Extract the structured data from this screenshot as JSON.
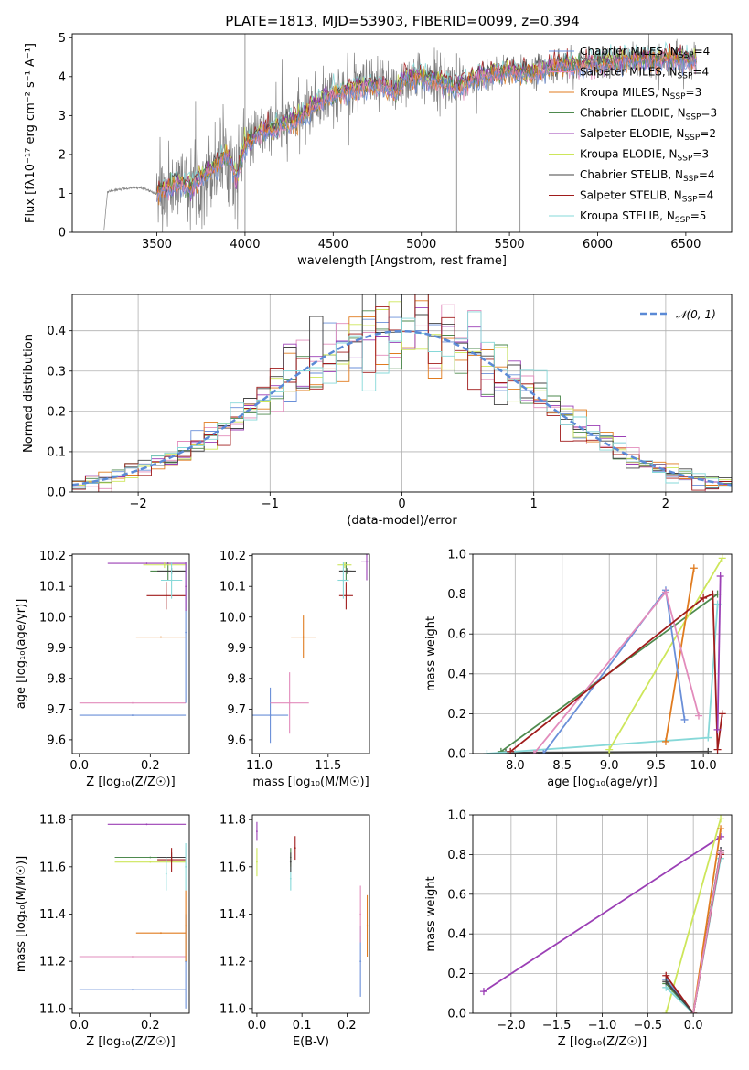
{
  "figure": {
    "title": "PLATE=1813, MJD=53903, FIBERID=0099, z=0.394"
  },
  "models": [
    {
      "name": "Chabrier MILES",
      "nssp": "4",
      "color": "#6a8fd8"
    },
    {
      "name": "Salpeter MILES",
      "nssp": "4",
      "color": "#e28cbc"
    },
    {
      "name": "Kroupa MILES",
      "nssp": "3",
      "color": "#e07b1f"
    },
    {
      "name": "Chabrier ELODIE",
      "nssp": "3",
      "color": "#4e8a4e"
    },
    {
      "name": "Salpeter ELODIE",
      "nssp": "2",
      "color": "#9b3fb5"
    },
    {
      "name": "Kroupa ELODIE",
      "nssp": "3",
      "color": "#cde65a"
    },
    {
      "name": "Chabrier STELIB",
      "nssp": "4",
      "color": "#444444"
    },
    {
      "name": "Salpeter STELIB",
      "nssp": "4",
      "color": "#a01c1c"
    },
    {
      "name": "Kroupa STELIB",
      "nssp": "5",
      "color": "#86d8d8"
    }
  ],
  "chart_data": [
    {
      "id": "spectrum",
      "type": "line",
      "xlabel": "wavelength [Angstrom, rest frame]",
      "ylabel": "Flux [fλ10⁻¹⁷ erg cm⁻² s⁻¹ A⁻¹]",
      "xlim": [
        3020,
        6760
      ],
      "ylim": [
        0,
        5.1
      ],
      "xticks": [
        3500,
        4000,
        4500,
        5000,
        5500,
        6000,
        6500
      ],
      "yticks": [
        0,
        1,
        2,
        3,
        4,
        5
      ],
      "data_color": "#808080",
      "x_start": 3200,
      "x_end": 6560,
      "continuum": [
        [
          3200,
          0.05
        ],
        [
          3220,
          1.05
        ],
        [
          3300,
          1.12
        ],
        [
          3400,
          1.15
        ],
        [
          3500,
          1.0
        ],
        [
          3600,
          1.25
        ],
        [
          3700,
          1.2
        ],
        [
          3800,
          1.6
        ],
        [
          3900,
          2.0
        ],
        [
          3950,
          1.4
        ],
        [
          4000,
          2.25
        ],
        [
          4100,
          2.6
        ],
        [
          4200,
          2.75
        ],
        [
          4300,
          2.9
        ],
        [
          4400,
          3.3
        ],
        [
          4500,
          3.55
        ],
        [
          4600,
          3.65
        ],
        [
          4700,
          3.75
        ],
        [
          4800,
          3.75
        ],
        [
          4850,
          3.6
        ],
        [
          4900,
          3.95
        ],
        [
          5000,
          4.0
        ],
        [
          5100,
          3.9
        ],
        [
          5200,
          3.75
        ],
        [
          5300,
          3.95
        ],
        [
          5400,
          4.1
        ],
        [
          5500,
          4.15
        ],
        [
          5600,
          4.1
        ],
        [
          5700,
          4.2
        ],
        [
          5800,
          4.3
        ],
        [
          5900,
          4.3
        ],
        [
          6000,
          4.35
        ],
        [
          6100,
          4.4
        ],
        [
          6200,
          4.42
        ],
        [
          6300,
          4.45
        ],
        [
          6400,
          4.45
        ],
        [
          6500,
          4.45
        ],
        [
          6560,
          4.4
        ]
      ],
      "model_start": 3500
    },
    {
      "id": "residuals",
      "type": "line",
      "xlabel": "(data-model)/error",
      "ylabel": "Normed distribution",
      "xlim": [
        -2.5,
        2.5
      ],
      "ylim": [
        0,
        0.49
      ],
      "xticks": [
        -2,
        -1,
        0,
        1,
        2
      ],
      "yticks": [
        0.0,
        0.1,
        0.2,
        0.3,
        0.4
      ],
      "legend": "𝒩(0, 1)",
      "gaussian_color": "#5b8ad6",
      "bins": 50
    },
    {
      "id": "z-age",
      "type": "scatter",
      "xlabel": "Z [log₁₀(Z/Z☉)]",
      "ylabel": "age  [log₁₀(age/yr)]",
      "xlim": [
        -0.02,
        0.31
      ],
      "ylim": [
        9.555,
        10.205
      ],
      "xticks": [
        0.0,
        0.2
      ],
      "yticks": [
        9.6,
        9.7,
        9.8,
        9.9,
        10.0,
        10.1,
        10.2
      ],
      "points": [
        {
          "m": 0,
          "x": 0.15,
          "y": 9.68,
          "xe": 0.15,
          "ye": 0.0
        },
        {
          "m": 1,
          "x": 0.15,
          "y": 9.72,
          "xe": 0.15,
          "ye": 0.0
        },
        {
          "m": 2,
          "x": 0.23,
          "y": 9.935,
          "xe": 0.07,
          "ye": 0.0
        },
        {
          "m": 3,
          "x": 0.25,
          "y": 10.15,
          "xe": 0.05,
          "ye": 0.03
        },
        {
          "m": 4,
          "x": 0.19,
          "y": 10.175,
          "xe": 0.11,
          "ye": 0.0
        },
        {
          "m": 5,
          "x": 0.24,
          "y": 10.17,
          "xe": 0.06,
          "ye": 0.01
        },
        {
          "m": 6,
          "x": 0.26,
          "y": 10.15,
          "xe": 0.04,
          "ye": 0.01
        },
        {
          "m": 7,
          "x": 0.245,
          "y": 10.07,
          "xe": 0.055,
          "ye": 0.045
        },
        {
          "m": 8,
          "x": 0.26,
          "y": 10.12,
          "xe": 0.03,
          "ye": 0.06
        },
        {
          "m": 0,
          "x": 0.3,
          "y": 9.95,
          "xe": 0.0,
          "ye": 0.23
        },
        {
          "m": 4,
          "x": 0.3,
          "y": 10.1,
          "xe": 0.0,
          "ye": 0.08
        }
      ]
    },
    {
      "id": "mass-age",
      "type": "scatter",
      "xlabel": "mass [log₁₀(M/M☉)]",
      "ylabel": "",
      "xlim": [
        10.95,
        11.8
      ],
      "ylim": [
        9.555,
        10.205
      ],
      "xticks": [
        11.0,
        11.5
      ],
      "yticks": [
        9.6,
        9.7,
        9.8,
        9.9,
        10.0,
        10.1,
        10.2
      ],
      "points": [
        {
          "m": 0,
          "x": 11.08,
          "y": 9.68,
          "xe": 0.13,
          "ye": 0.09
        },
        {
          "m": 1,
          "x": 11.22,
          "y": 9.72,
          "xe": 0.14,
          "ye": 0.1
        },
        {
          "m": 2,
          "x": 11.32,
          "y": 9.935,
          "xe": 0.09,
          "ye": 0.07
        },
        {
          "m": 3,
          "x": 11.63,
          "y": 10.15,
          "xe": 0.04,
          "ye": 0.03
        },
        {
          "m": 4,
          "x": 11.78,
          "y": 10.18,
          "xe": 0.04,
          "ye": 0.06
        },
        {
          "m": 5,
          "x": 11.62,
          "y": 10.17,
          "xe": 0.05,
          "ye": 0.01
        },
        {
          "m": 6,
          "x": 11.64,
          "y": 10.15,
          "xe": 0.06,
          "ye": 0.01
        },
        {
          "m": 7,
          "x": 11.63,
          "y": 10.07,
          "xe": 0.05,
          "ye": 0.045
        },
        {
          "m": 8,
          "x": 11.61,
          "y": 10.12,
          "xe": 0.04,
          "ye": 0.06
        }
      ]
    },
    {
      "id": "age-weight",
      "type": "line",
      "xlabel": "age  [log₁₀(age/yr)]",
      "ylabel": "mass weight",
      "xlim": [
        7.55,
        10.3
      ],
      "ylim": [
        0.0,
        1.0
      ],
      "xticks": [
        8.0,
        8.5,
        9.0,
        9.5,
        10.0
      ],
      "yticks": [
        0.0,
        0.2,
        0.4,
        0.6,
        0.8,
        1.0
      ],
      "series": [
        {
          "m": 6,
          "x": [
            7.9,
            10.05
          ],
          "y": [
            0.005,
            0.01
          ]
        },
        {
          "m": 3,
          "x": [
            7.85,
            10.15
          ],
          "y": [
            0.01,
            0.8
          ]
        },
        {
          "m": 8,
          "x": [
            7.7,
            10.05,
            10.15
          ],
          "y": [
            0.0,
            0.08,
            0.75
          ]
        },
        {
          "m": 5,
          "x": [
            9.0,
            9.0,
            10.2
          ],
          "y": [
            0.0,
            0.02,
            0.98
          ]
        },
        {
          "m": 2,
          "x": [
            9.6,
            9.9
          ],
          "y": [
            0.06,
            0.93
          ]
        },
        {
          "m": 0,
          "x": [
            8.3,
            9.6,
            9.8
          ],
          "y": [
            0.0,
            0.82,
            0.17
          ]
        },
        {
          "m": 1,
          "x": [
            8.2,
            9.6,
            9.95
          ],
          "y": [
            0.0,
            0.81,
            0.19
          ]
        },
        {
          "m": 7,
          "x": [
            7.95,
            10.0,
            10.1,
            10.15,
            10.2
          ],
          "y": [
            0.01,
            0.78,
            0.8,
            0.02,
            0.2
          ]
        },
        {
          "m": 4,
          "x": [
            10.15,
            10.18
          ],
          "y": [
            0.12,
            0.89
          ]
        }
      ]
    },
    {
      "id": "z-mass",
      "type": "scatter",
      "xlabel": "Z [log₁₀(Z/Z☉)]",
      "ylabel": "mass [log₁₀(M/M☉)]",
      "xlim": [
        -0.02,
        0.31
      ],
      "ylim": [
        10.98,
        11.82
      ],
      "xticks": [
        0.0,
        0.2
      ],
      "yticks": [
        11.0,
        11.2,
        11.4,
        11.6,
        11.8
      ],
      "points": [
        {
          "m": 0,
          "x": 0.15,
          "y": 11.08,
          "xe": 0.15,
          "ye": 0.0
        },
        {
          "m": 1,
          "x": 0.15,
          "y": 11.22,
          "xe": 0.15,
          "ye": 0.0
        },
        {
          "m": 2,
          "x": 0.23,
          "y": 11.32,
          "xe": 0.07,
          "ye": 0.0
        },
        {
          "m": 3,
          "x": 0.2,
          "y": 11.64,
          "xe": 0.1,
          "ye": 0.0
        },
        {
          "m": 4,
          "x": 0.19,
          "y": 11.78,
          "xe": 0.11,
          "ye": 0.0
        },
        {
          "m": 5,
          "x": 0.2,
          "y": 11.62,
          "xe": 0.1,
          "ye": 0.0
        },
        {
          "m": 6,
          "x": 0.26,
          "y": 11.64,
          "xe": 0.04,
          "ye": 0.02
        },
        {
          "m": 7,
          "x": 0.26,
          "y": 11.63,
          "xe": 0.04,
          "ye": 0.05
        },
        {
          "m": 8,
          "x": 0.245,
          "y": 11.57,
          "xe": 0.0,
          "ye": 0.07
        },
        {
          "m": 0,
          "x": 0.3,
          "y": 11.2,
          "xe": 0.0,
          "ye": 0.2
        },
        {
          "m": 8,
          "x": 0.3,
          "y": 11.6,
          "xe": 0.0,
          "ye": 0.1
        },
        {
          "m": 2,
          "x": 0.3,
          "y": 11.35,
          "xe": 0.0,
          "ye": 0.15
        }
      ]
    },
    {
      "id": "ebv-mass",
      "type": "scatter",
      "xlabel": "E(B-V)",
      "ylabel": "",
      "xlim": [
        -0.01,
        0.25
      ],
      "ylim": [
        10.98,
        11.82
      ],
      "xticks": [
        0.0,
        0.1,
        0.2
      ],
      "yticks": [
        11.0,
        11.2,
        11.4,
        11.6,
        11.8
      ],
      "points": [
        {
          "m": 4,
          "x": 0.0,
          "y": 11.75,
          "xe": 0.0,
          "ye": 0.04
        },
        {
          "m": 5,
          "x": 0.0,
          "y": 11.62,
          "xe": 0.0,
          "ye": 0.06
        },
        {
          "m": 3,
          "x": 0.075,
          "y": 11.64,
          "xe": 0.0,
          "ye": 0.04
        },
        {
          "m": 8,
          "x": 0.075,
          "y": 11.55,
          "xe": 0.0,
          "ye": 0.05
        },
        {
          "m": 6,
          "x": 0.075,
          "y": 11.62,
          "xe": 0.0,
          "ye": 0.04
        },
        {
          "m": 7,
          "x": 0.085,
          "y": 11.68,
          "xe": 0.0,
          "ye": 0.05
        },
        {
          "m": 0,
          "x": 0.23,
          "y": 11.2,
          "xe": 0.0,
          "ye": 0.15
        },
        {
          "m": 1,
          "x": 0.23,
          "y": 11.4,
          "xe": 0.0,
          "ye": 0.12
        },
        {
          "m": 2,
          "x": 0.245,
          "y": 11.35,
          "xe": 0.0,
          "ye": 0.13
        }
      ]
    },
    {
      "id": "z-weight",
      "type": "line",
      "xlabel": "Z [log₁₀(Z/Z☉)]",
      "ylabel": "mass weight",
      "xlim": [
        -2.42,
        0.42
      ],
      "ylim": [
        0.0,
        1.0
      ],
      "xticks": [
        -2.0,
        -1.5,
        -1.0,
        -0.5,
        0.0
      ],
      "yticks": [
        0.0,
        0.2,
        0.4,
        0.6,
        0.8,
        1.0
      ],
      "series": [
        {
          "m": 4,
          "x": [
            -2.3,
            0.3
          ],
          "y": [
            0.11,
            0.89
          ]
        },
        {
          "m": 5,
          "x": [
            -0.3,
            0.3
          ],
          "y": [
            0.0,
            0.98
          ]
        },
        {
          "m": 0,
          "x": [
            -0.3,
            0.0,
            0.3
          ],
          "y": [
            0.17,
            0.0,
            0.82
          ]
        },
        {
          "m": 3,
          "x": [
            -0.3,
            0.0,
            0.3
          ],
          "y": [
            0.15,
            0.0,
            0.8
          ]
        },
        {
          "m": 8,
          "x": [
            -0.3,
            0.0,
            0.3
          ],
          "y": [
            0.13,
            0.0,
            0.78
          ]
        },
        {
          "m": 7,
          "x": [
            -0.3,
            0.0,
            0.3
          ],
          "y": [
            0.19,
            0.0,
            0.8
          ]
        },
        {
          "m": 6,
          "x": [
            -0.3,
            0.0,
            0.3
          ],
          "y": [
            0.16,
            0.0,
            0.82
          ]
        },
        {
          "m": 2,
          "x": [
            0.0,
            0.3
          ],
          "y": [
            0.0,
            0.93
          ]
        },
        {
          "m": 1,
          "x": [
            0.0,
            0.3
          ],
          "y": [
            0.0,
            0.81
          ]
        }
      ]
    }
  ]
}
